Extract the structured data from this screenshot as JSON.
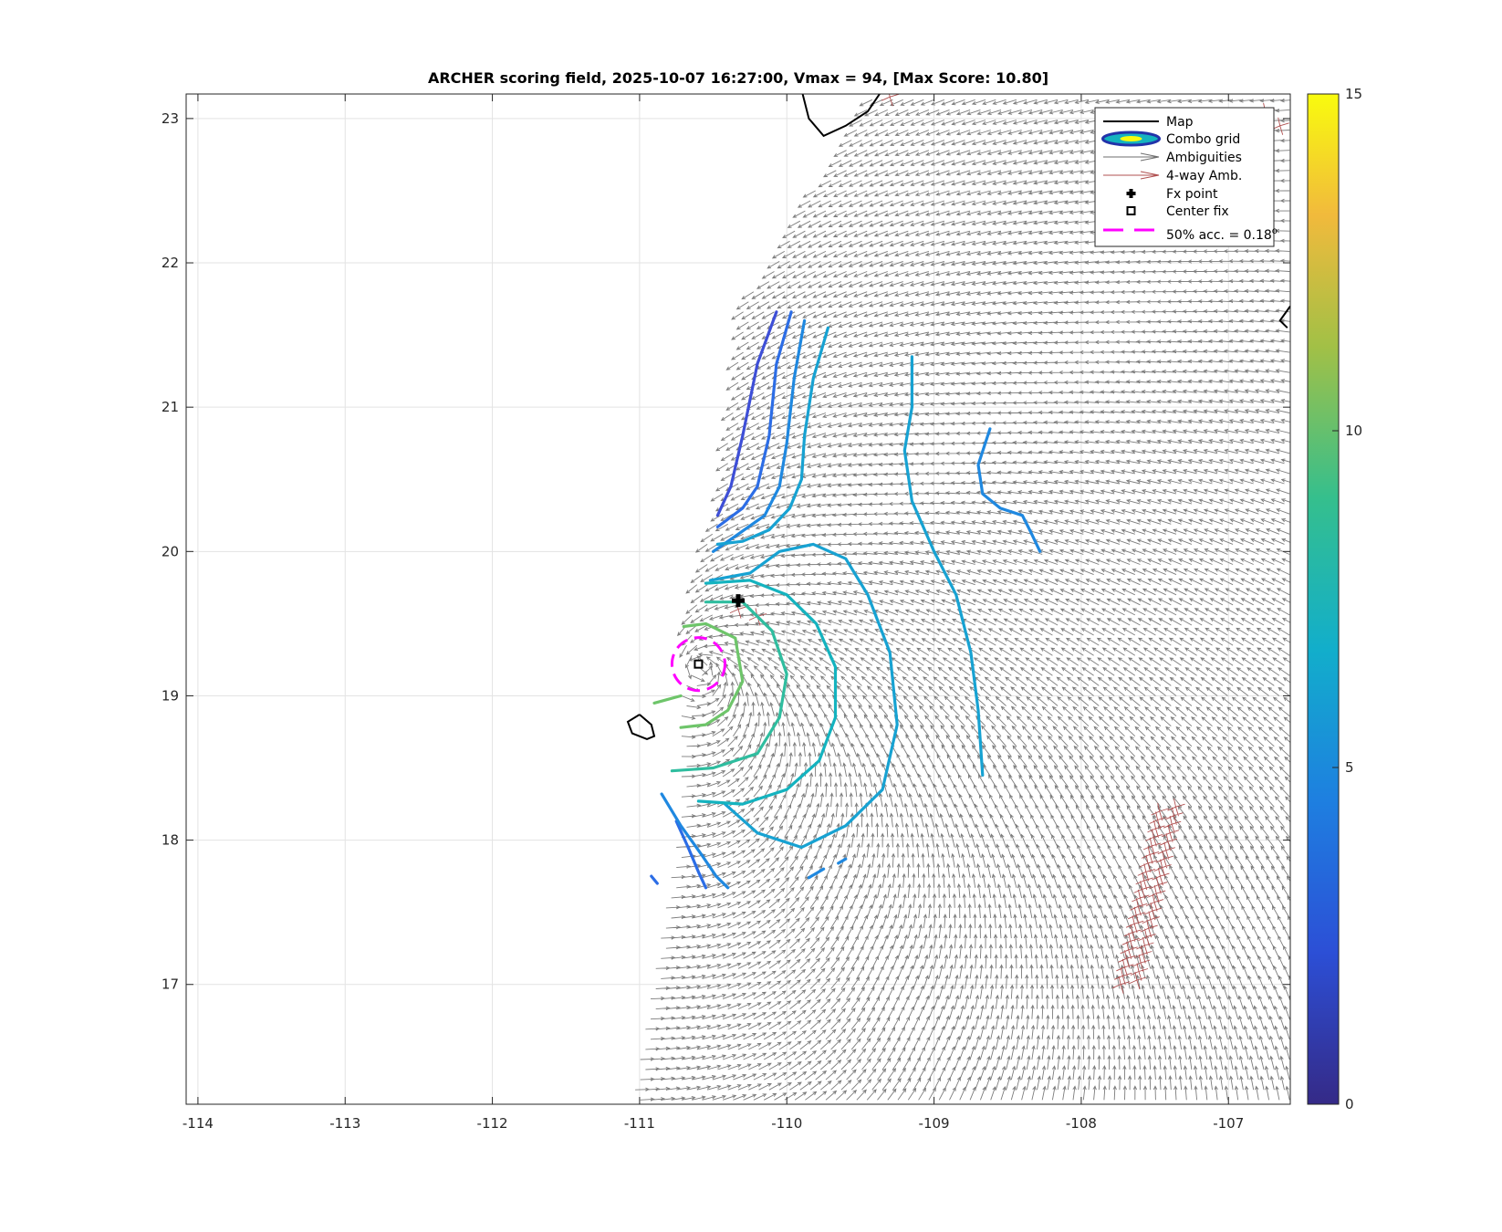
{
  "chart_data": {
    "type": "contour",
    "title": "ARCHER scoring field, 2025-10-07 16:27:00, Vmax = 94, [Max Score: 10.80]",
    "xlabel": "",
    "ylabel": "",
    "xlim": [
      -114.08,
      -106.58
    ],
    "ylim": [
      16.17,
      23.17
    ],
    "x_ticks": [
      -114,
      -113,
      -112,
      -111,
      -110,
      -109,
      -108,
      -107
    ],
    "y_ticks": [
      17,
      18,
      19,
      20,
      21,
      22,
      23
    ],
    "grid": true,
    "legend_position": "top-right",
    "legend": [
      {
        "label": "Map",
        "style": "line",
        "color": "#000000"
      },
      {
        "label": "Combo grid",
        "style": "ellipse",
        "color": "#2233aa"
      },
      {
        "label": "Ambiguities",
        "style": "arrow",
        "color": "#6e6e6e"
      },
      {
        "label": "4-way Amb.",
        "style": "arrow",
        "color": "#b05050"
      },
      {
        "label": "Fx point",
        "style": "marker",
        "color": "#000000"
      },
      {
        "label": "Center fix",
        "style": "square",
        "color": "#000000"
      },
      {
        "label": "50% acc. = 0.18",
        "superscript": "o",
        "style": "dashed",
        "color": "#ff00ff"
      }
    ],
    "colorbar": {
      "range": [
        0,
        15
      ],
      "ticks": [
        0,
        5,
        10,
        15
      ],
      "colormap": "parula"
    },
    "fx_point": {
      "lon": -110.33,
      "lat": 19.66
    },
    "center_fix": {
      "lon": -110.6,
      "lat": 19.22
    },
    "accuracy_circle_radius_deg": 0.18,
    "max_score": 10.8,
    "contour_levels": [
      {
        "level": 3,
        "color": "#3e4fd7"
      },
      {
        "level": 4,
        "color": "#2c6de6"
      },
      {
        "level": 5,
        "color": "#1f88e0"
      },
      {
        "level": 6,
        "color": "#17a2d2"
      },
      {
        "level": 7,
        "color": "#14b3bf"
      },
      {
        "level": 8,
        "color": "#2fbd9f"
      },
      {
        "level": 9,
        "color": "#6ec56a"
      }
    ],
    "wind_field": {
      "region_west_edge_lat": [
        [
          21.6,
          -110.3
        ],
        [
          20.4,
          -110.45
        ],
        [
          19.5,
          -110.7
        ],
        [
          18.0,
          -110.75
        ],
        [
          16.2,
          -111.05
        ]
      ],
      "arrow_color": "#6e6e6e"
    },
    "coastline_color": "#000000"
  }
}
